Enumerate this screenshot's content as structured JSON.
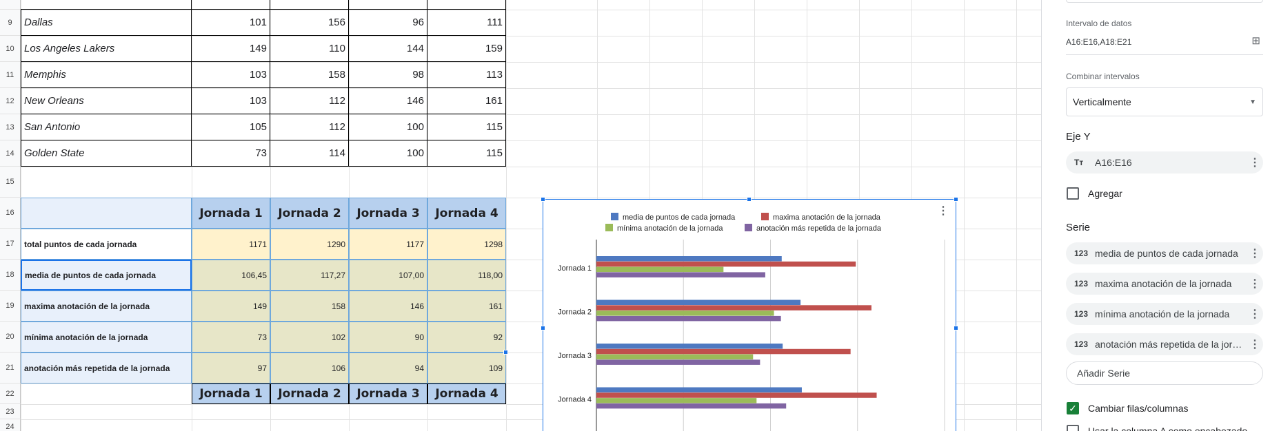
{
  "sheet": {
    "top_rows": [
      {
        "num": "9",
        "team": "Dallas",
        "v": [
          "101",
          "156",
          "96",
          "111"
        ]
      },
      {
        "num": "10",
        "team": "Los Angeles Lakers",
        "v": [
          "149",
          "110",
          "144",
          "159"
        ]
      },
      {
        "num": "11",
        "team": "Memphis",
        "v": [
          "103",
          "158",
          "98",
          "113"
        ]
      },
      {
        "num": "12",
        "team": "New Orleans",
        "v": [
          "103",
          "112",
          "146",
          "161"
        ]
      },
      {
        "num": "13",
        "team": "San Antonio",
        "v": [
          "105",
          "112",
          "100",
          "115"
        ]
      },
      {
        "num": "14",
        "team": "Golden State",
        "v": [
          "73",
          "114",
          "100",
          "115"
        ]
      }
    ],
    "row15": "15",
    "row16": "16",
    "headers": [
      "Jornada 1",
      "Jornada 2",
      "Jornada 3",
      "Jornada 4"
    ],
    "stats_rows": [
      {
        "num": "17",
        "label": "total puntos de cada jornada",
        "v": [
          "1171",
          "1290",
          "1177",
          "1298"
        ]
      },
      {
        "num": "18",
        "label": "media de puntos de cada jornada",
        "v": [
          "106,45",
          "117,27",
          "107,00",
          "118,00"
        ]
      },
      {
        "num": "19",
        "label": "maxima anotación de la jornada",
        "v": [
          "149",
          "158",
          "146",
          "161"
        ]
      },
      {
        "num": "20",
        "label": "mínima anotación de la jornada",
        "v": [
          "73",
          "102",
          "90",
          "92"
        ]
      },
      {
        "num": "21",
        "label": "anotación más repetida de la jornada",
        "v": [
          "97",
          "106",
          "94",
          "109"
        ]
      }
    ],
    "row22": "22",
    "row23": "23",
    "row24": "24"
  },
  "chart_data": {
    "type": "bar",
    "orientation": "horizontal",
    "categories": [
      "Jornada 1",
      "Jornada 2",
      "Jornada 3",
      "Jornada 4"
    ],
    "series": [
      {
        "name": "media de puntos de cada jornada",
        "values": [
          106.45,
          117.27,
          107.0,
          118.0
        ],
        "color": "#4e79c1"
      },
      {
        "name": "maxima anotación de la jornada",
        "values": [
          149,
          158,
          146,
          161
        ],
        "color": "#c0504d"
      },
      {
        "name": "mínima anotación de la jornada",
        "values": [
          73,
          102,
          90,
          92
        ],
        "color": "#9bbb59"
      },
      {
        "name": "anotación más repetida de la jornada",
        "values": [
          97,
          106,
          94,
          109
        ],
        "color": "#8064a2"
      }
    ],
    "xlim": [
      0,
      200
    ],
    "grid": true,
    "legend": "top"
  },
  "panel": {
    "data_range_label": "Intervalo de datos",
    "data_range_value": "A16:E16,A18:E21",
    "combine_label": "Combinar intervalos",
    "combine_value": "Verticalmente",
    "y_axis_title": "Eje Y",
    "y_axis_chip": "A16:E16",
    "add_label": "Agregar",
    "series_title": "Serie",
    "series": [
      "media de puntos de cada jornada",
      "maxima anotación de la jornada",
      "mínima anotación de la jornada",
      "anotación más repetida de la jornada"
    ],
    "add_series": "Añadir Serie",
    "switch_rows_cols": "Cambiar filas/columnas",
    "use_col_a": "Usar la columna A como encabezado",
    "chip_icon_text": "Tт",
    "chip_icon_num": "123"
  },
  "colors": {
    "header_fill": "#b7d0ee",
    "label_fill": "#e8f0fb",
    "total_fill": "#fff2cc",
    "stats_fill": "#e7e6c8",
    "accent": "#1a73e8"
  }
}
